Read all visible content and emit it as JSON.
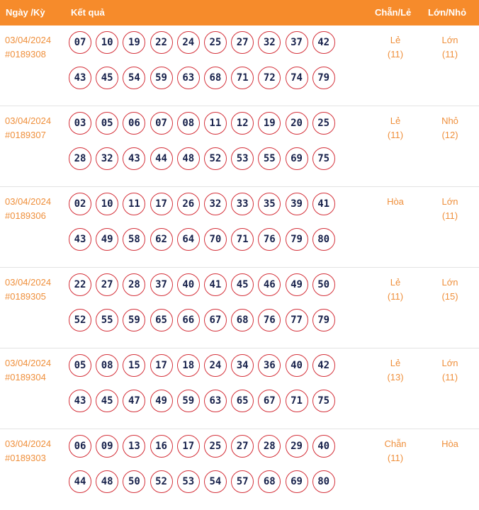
{
  "header": {
    "date_label": "Ngày /Kỳ",
    "result_label": "Kết quả",
    "parity_label": "Chẵn/Lẻ",
    "size_label": "Lớn/Nhỏ"
  },
  "colors": {
    "accent": "#f68b2b",
    "ball_border": "#d4313a",
    "ball_text": "#16204a"
  },
  "draws": [
    {
      "date": "03/04/2024",
      "id": "#0189308",
      "numbers": [
        "07",
        "10",
        "19",
        "22",
        "24",
        "25",
        "27",
        "32",
        "37",
        "42",
        "43",
        "45",
        "54",
        "59",
        "63",
        "68",
        "71",
        "72",
        "74",
        "79"
      ],
      "parity": "Lẻ",
      "parity_count": "(11)",
      "size": "Lớn",
      "size_count": "(11)"
    },
    {
      "date": "03/04/2024",
      "id": "#0189307",
      "numbers": [
        "03",
        "05",
        "06",
        "07",
        "08",
        "11",
        "12",
        "19",
        "20",
        "25",
        "28",
        "32",
        "43",
        "44",
        "48",
        "52",
        "53",
        "55",
        "69",
        "75"
      ],
      "parity": "Lẻ",
      "parity_count": "(11)",
      "size": "Nhỏ",
      "size_count": "(12)"
    },
    {
      "date": "03/04/2024",
      "id": "#0189306",
      "numbers": [
        "02",
        "10",
        "11",
        "17",
        "26",
        "32",
        "33",
        "35",
        "39",
        "41",
        "43",
        "49",
        "58",
        "62",
        "64",
        "70",
        "71",
        "76",
        "79",
        "80"
      ],
      "parity": "Hòa",
      "parity_count": "",
      "size": "Lớn",
      "size_count": "(11)"
    },
    {
      "date": "03/04/2024",
      "id": "#0189305",
      "numbers": [
        "22",
        "27",
        "28",
        "37",
        "40",
        "41",
        "45",
        "46",
        "49",
        "50",
        "52",
        "55",
        "59",
        "65",
        "66",
        "67",
        "68",
        "76",
        "77",
        "79"
      ],
      "parity": "Lẻ",
      "parity_count": "(11)",
      "size": "Lớn",
      "size_count": "(15)"
    },
    {
      "date": "03/04/2024",
      "id": "#0189304",
      "numbers": [
        "05",
        "08",
        "15",
        "17",
        "18",
        "24",
        "34",
        "36",
        "40",
        "42",
        "43",
        "45",
        "47",
        "49",
        "59",
        "63",
        "65",
        "67",
        "71",
        "75"
      ],
      "parity": "Lẻ",
      "parity_count": "(13)",
      "size": "Lớn",
      "size_count": "(11)"
    },
    {
      "date": "03/04/2024",
      "id": "#0189303",
      "numbers": [
        "06",
        "09",
        "13",
        "16",
        "17",
        "25",
        "27",
        "28",
        "29",
        "40",
        "44",
        "48",
        "50",
        "52",
        "53",
        "54",
        "57",
        "68",
        "69",
        "80"
      ],
      "parity": "Chẵn",
      "parity_count": "(11)",
      "size": "Hòa",
      "size_count": ""
    }
  ]
}
